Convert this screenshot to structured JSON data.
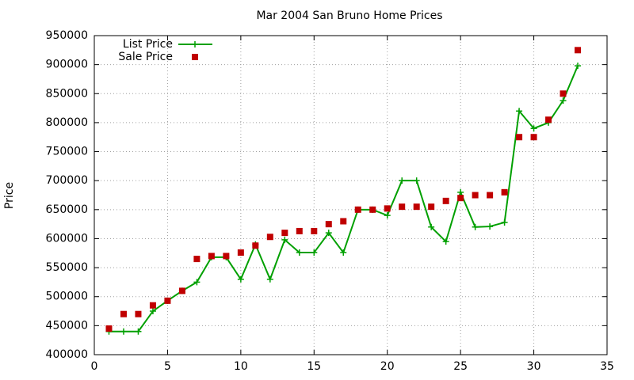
{
  "chart_data": {
    "type": "line",
    "title": "Mar 2004 San Bruno Home Prices",
    "y_label": "Price",
    "x": [
      1,
      2,
      3,
      4,
      5,
      6,
      7,
      8,
      9,
      10,
      11,
      12,
      13,
      14,
      15,
      16,
      17,
      18,
      19,
      20,
      21,
      22,
      23,
      24,
      25,
      26,
      27,
      28,
      29,
      30,
      31,
      32,
      33
    ],
    "series": [
      {
        "name": "List Price",
        "color": "#00a000",
        "line": true,
        "marker": "plus",
        "values": [
          440000,
          440000,
          440000,
          475000,
          493000,
          510000,
          525000,
          568000,
          568000,
          530000,
          590000,
          530000,
          598000,
          576000,
          576000,
          610000,
          576000,
          650000,
          650000,
          640000,
          700000,
          700000,
          620000,
          595000,
          680000,
          620000,
          621000,
          628000,
          820000,
          790000,
          800000,
          838000,
          898000
        ]
      },
      {
        "name": "Sale Price",
        "color": "#c00000",
        "line": false,
        "marker": "square",
        "values": [
          445000,
          470000,
          470000,
          485000,
          493000,
          510000,
          565000,
          570000,
          570000,
          576000,
          588000,
          603000,
          610000,
          613000,
          613000,
          625000,
          630000,
          650000,
          650000,
          652000,
          655000,
          655000,
          655000,
          665000,
          670000,
          675000,
          675000,
          680000,
          775000,
          775000,
          805000,
          850000,
          925000
        ]
      }
    ],
    "xlim": [
      0,
      35
    ],
    "xticks": [
      0,
      5,
      10,
      15,
      20,
      25,
      30,
      35
    ],
    "ylim": [
      400000,
      950000
    ],
    "yticks": [
      400000,
      450000,
      500000,
      550000,
      600000,
      650000,
      700000,
      750000,
      800000,
      850000,
      900000,
      950000
    ],
    "grid": true,
    "legend": "top-left"
  }
}
